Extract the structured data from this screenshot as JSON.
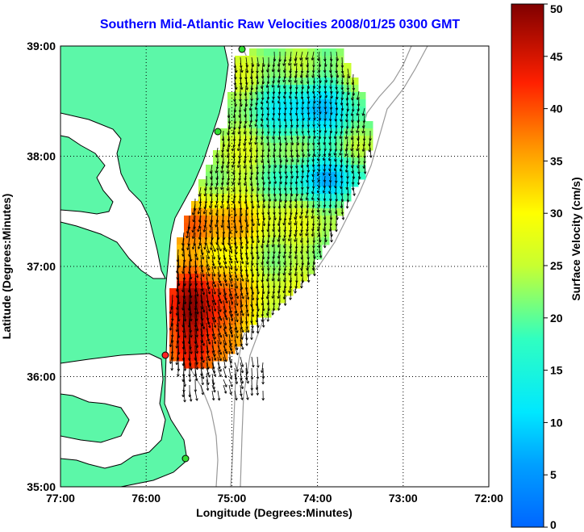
{
  "title": "Southern Mid-Atlantic Raw Velocities 2008/01/25 0300 GMT",
  "map": {
    "xlabel": "Longitude (Degrees:Minutes)",
    "ylabel": "Latitude (Degrees:Minutes)",
    "lon_range": [
      -77,
      -72
    ],
    "lat_range": [
      35,
      39
    ],
    "x_ticks": [
      {
        "value": -77,
        "label": "77:00"
      },
      {
        "value": -76,
        "label": "76:00"
      },
      {
        "value": -75,
        "label": "75:00"
      },
      {
        "value": -74,
        "label": "74:00"
      },
      {
        "value": -73,
        "label": "73:00"
      },
      {
        "value": -72,
        "label": "72:00"
      }
    ],
    "y_ticks": [
      {
        "value": 39,
        "label": "39:00"
      },
      {
        "value": 38,
        "label": "38:00"
      },
      {
        "value": 37,
        "label": "37:00"
      },
      {
        "value": 36,
        "label": "36:00"
      },
      {
        "value": 35,
        "label": "35:00"
      }
    ],
    "grid": "dotted",
    "land_color": "#5cf7a8",
    "coast_color": "#000000",
    "isobath_color": "#999999",
    "station_color": "#33dd33",
    "station_alt_color": "#ff2222"
  },
  "colorbar": {
    "label": "Surface Velocity (cm/s)",
    "range": [
      0,
      50
    ],
    "ticks": [
      "0",
      "5",
      "10",
      "15",
      "20",
      "25",
      "30",
      "35",
      "40",
      "45",
      "50"
    ],
    "colormap": "jet"
  }
}
